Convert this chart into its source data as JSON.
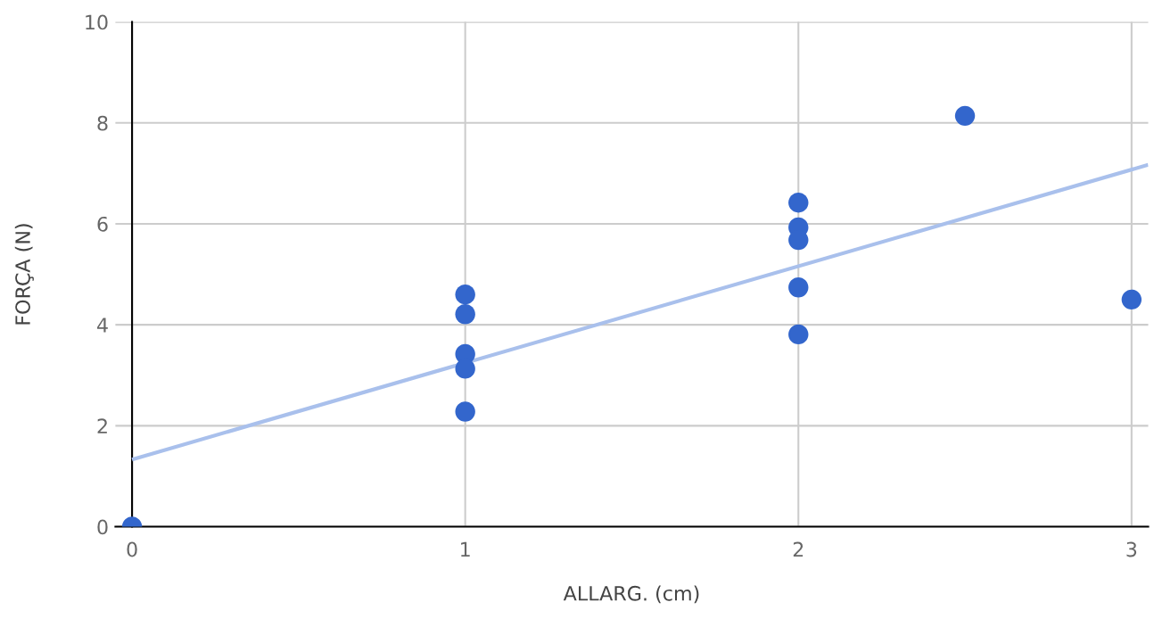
{
  "chart_data": {
    "type": "scatter",
    "xlabel": "ALLARG. (cm)",
    "ylabel": "FORÇA (N)",
    "xlim": [
      -0.05,
      3.05
    ],
    "ylim": [
      0,
      10
    ],
    "xticks": [
      0,
      1,
      2,
      3
    ],
    "yticks": [
      0,
      2,
      4,
      6,
      8,
      10
    ],
    "grid": true,
    "series": [
      {
        "marker": "circle",
        "color": "#3366cc",
        "x": [
          0,
          1,
          1,
          1,
          1,
          1,
          2,
          2,
          2,
          2,
          2,
          2.5,
          3
        ],
        "values": [
          0,
          4.6,
          4.21,
          3.42,
          3.13,
          2.28,
          6.42,
          5.93,
          5.68,
          4.74,
          3.81,
          8.14,
          4.5
        ]
      },
      {
        "type": "line",
        "marker": "none",
        "color": "#a9c0ec",
        "x": [
          0,
          3.05
        ],
        "values": [
          1.33,
          7.17
        ]
      }
    ]
  }
}
